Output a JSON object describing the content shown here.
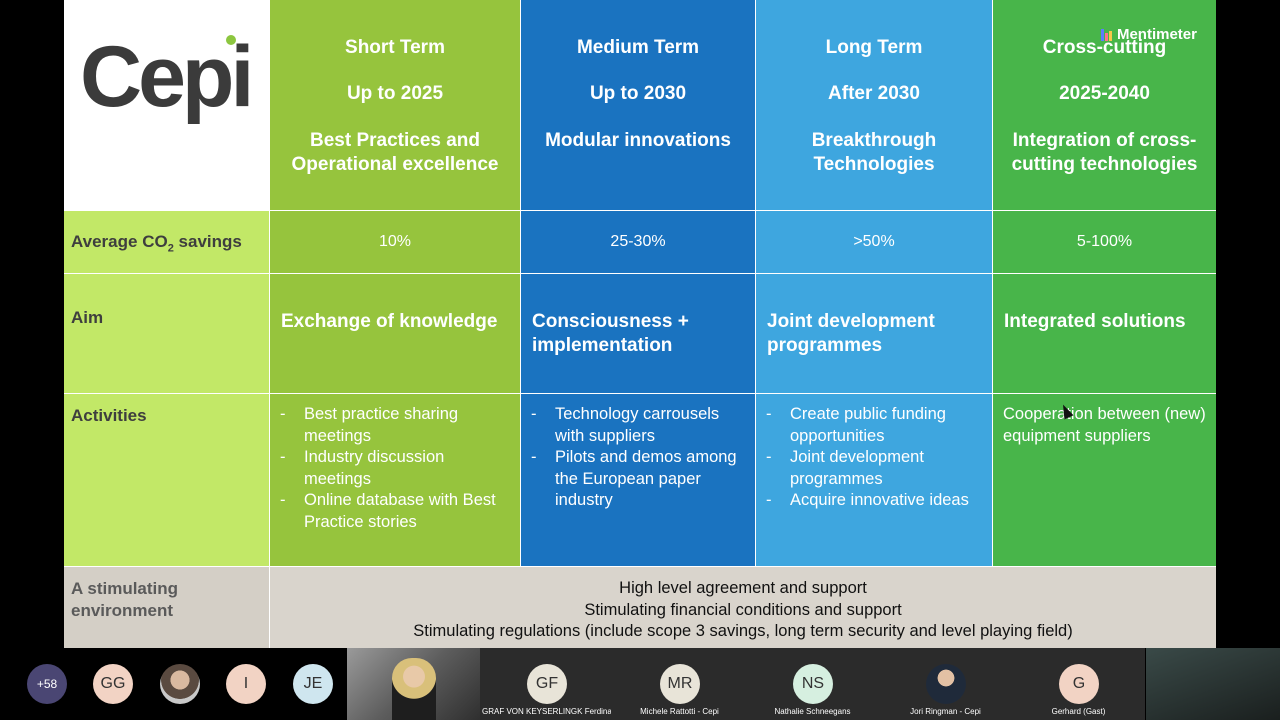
{
  "slide": {
    "brand": "Cepi",
    "mentimeter_label": "Mentimeter",
    "columns": [
      {
        "title": "Short Term",
        "period": "Up to 2025",
        "theme": "Best Practices and Operational excellence",
        "savings": "10%",
        "aim": "Exchange of knowledge",
        "activities": [
          "Best practice sharing meetings",
          "Industry discussion meetings",
          "Online database with Best Practice stories"
        ]
      },
      {
        "title": "Medium Term",
        "period": "Up to 2030",
        "theme": "Modular innovations",
        "savings": "25-30%",
        "aim": "Consciousness + implementation",
        "activities": [
          "Technology carrousels with suppliers",
          "Pilots and demos among the European paper industry"
        ]
      },
      {
        "title": "Long Term",
        "period": "After 2030",
        "theme": "Breakthrough Technologies",
        "savings": ">50%",
        "aim": "Joint development programmes",
        "activities": [
          "Create public funding opportunities",
          "Joint development programmes",
          "Acquire innovative ideas"
        ]
      },
      {
        "title": "Cross-cutting",
        "period": "2025-2040",
        "theme": "Integration of cross-cutting technologies",
        "savings": "5-100%",
        "aim": "Integrated solutions",
        "activities_text": "Cooperation between (new) equipment suppliers"
      }
    ],
    "row_labels": {
      "savings_prefix": "Average CO",
      "savings_sub": "2",
      "savings_suffix": " savings",
      "aim": "Aim",
      "activities": "Activities",
      "environment": "A stimulating environment"
    },
    "environment_lines": [
      "High level agreement and support",
      "Stimulating financial conditions and support",
      "Stimulating regulations (include scope 3 savings, long term security and level playing field)"
    ],
    "colors": {
      "short": "#96c43d",
      "medium": "#1a73c0",
      "long": "#3ea6df",
      "cross": "#48b54a",
      "label": "#c2e867",
      "env": "#d9d4cc"
    }
  },
  "participants": {
    "overflow_count": "+58",
    "avatars": [
      {
        "initials": "GG",
        "bg": "#f2d3c4",
        "fg": "#333333"
      },
      {
        "initials": "",
        "photo": true
      },
      {
        "initials": "I",
        "bg": "#f2d3c4",
        "fg": "#333333"
      },
      {
        "initials": "JE",
        "bg": "#cfe6ef",
        "fg": "#333333"
      }
    ],
    "tiles": [
      {
        "initials": "GF",
        "name": "GRAF VON KEYSERLINGK Ferdinand"
      },
      {
        "initials": "MR",
        "name": "Michele Rattotti - Cepi"
      },
      {
        "initials": "NS",
        "name": "Nathalie Schneegans"
      },
      {
        "initials": "",
        "name": "Jori Ringman - Cepi",
        "photo": true
      },
      {
        "initials": "G",
        "name": "Gerhard (Gast)"
      }
    ]
  }
}
